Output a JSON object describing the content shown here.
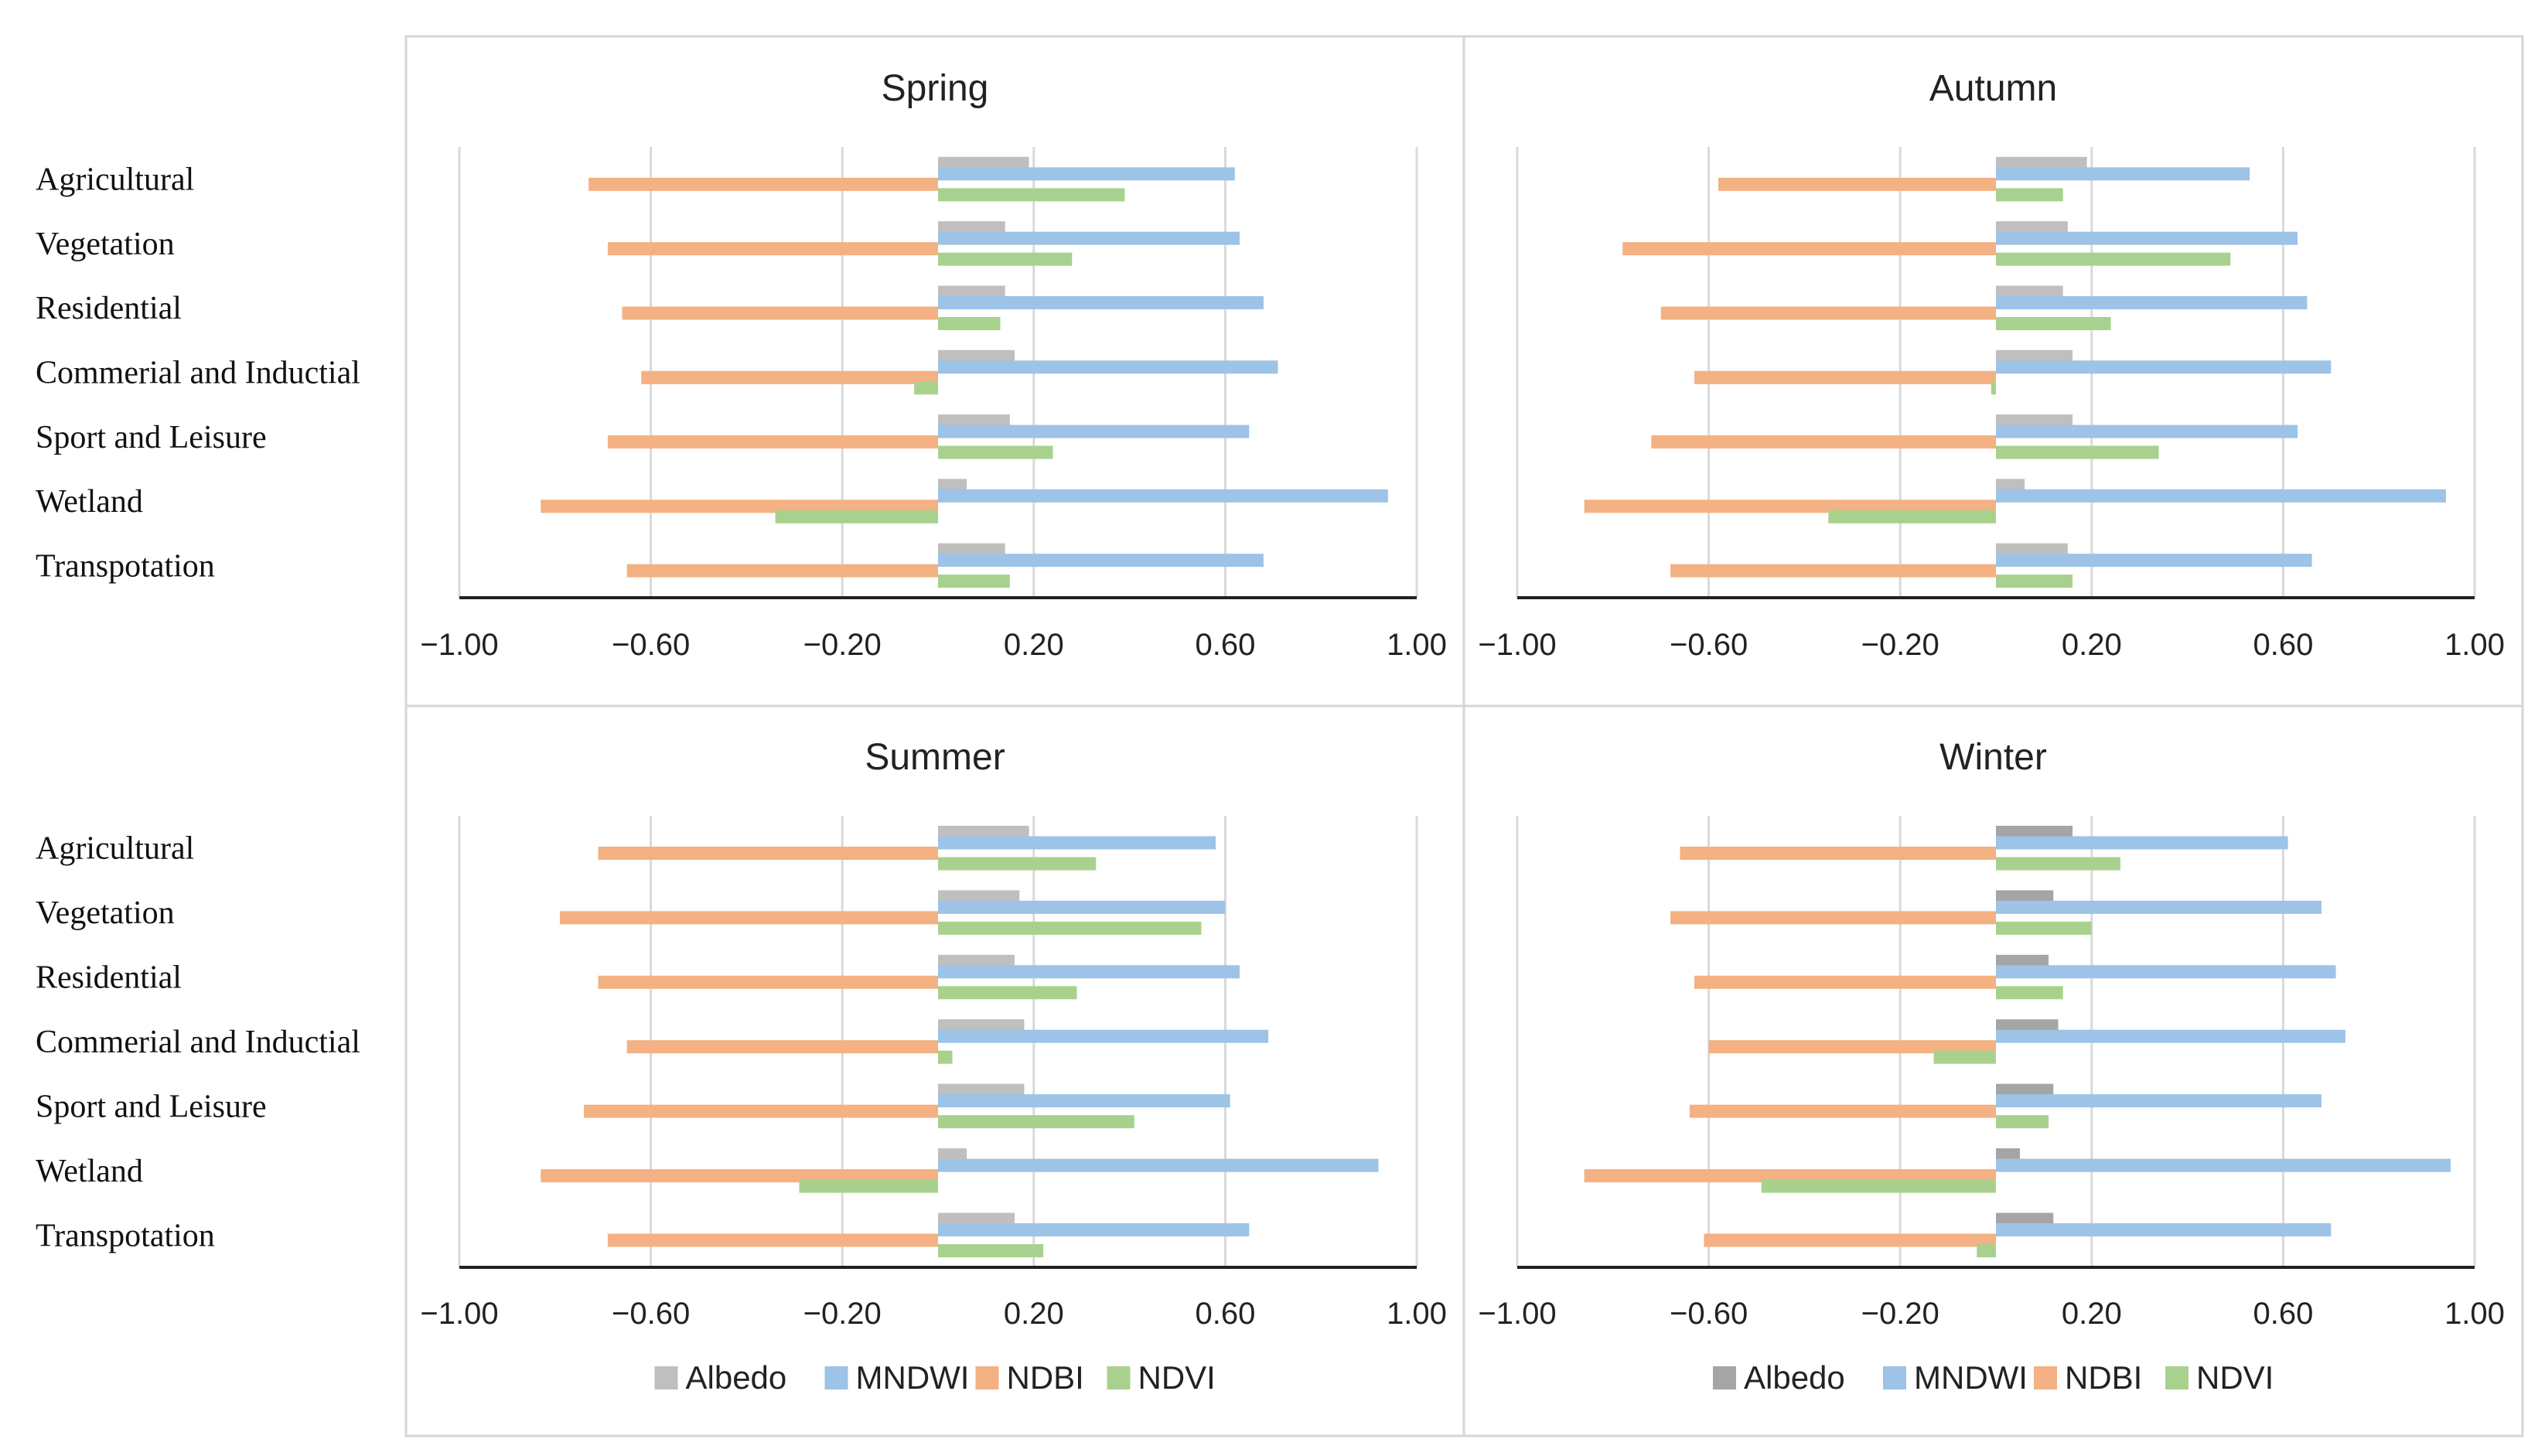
{
  "chart_data": [
    {
      "type": "bar",
      "orientation": "horizontal",
      "title": "Spring",
      "categories": [
        "Agricultural",
        "Vegetation",
        "Residential",
        "Commerial and Inductial",
        "Sport and Leisure",
        "Wetland",
        "Transpotation"
      ],
      "series": [
        {
          "name": "Albedo",
          "color": "#bfbfbf",
          "values": [
            0.19,
            0.14,
            0.14,
            0.16,
            0.15,
            0.06,
            0.14
          ]
        },
        {
          "name": "MNDWI",
          "color": "#9dc3e6",
          "values": [
            0.62,
            0.63,
            0.68,
            0.71,
            0.65,
            0.94,
            0.68
          ]
        },
        {
          "name": "NDBI",
          "color": "#f4b183",
          "values": [
            -0.73,
            -0.69,
            -0.66,
            -0.62,
            -0.69,
            -0.83,
            -0.65
          ]
        },
        {
          "name": "NDVI",
          "color": "#a9d18e",
          "values": [
            0.39,
            0.28,
            0.13,
            -0.05,
            0.24,
            -0.34,
            0.15
          ]
        }
      ],
      "xlim": [
        -1.0,
        1.0
      ],
      "xticks": [
        "−1.00",
        "−0.60",
        "−0.20",
        "0.20",
        "0.60",
        "1.00"
      ],
      "xtick_values": [
        -1.0,
        -0.6,
        -0.2,
        0.2,
        0.6,
        1.0
      ],
      "grid": "vertical"
    },
    {
      "type": "bar",
      "orientation": "horizontal",
      "title": "Autumn",
      "categories": [
        "Agricultural",
        "Vegetation",
        "Residential",
        "Commerial and Inductial",
        "Sport and Leisure",
        "Wetland",
        "Transpotation"
      ],
      "series": [
        {
          "name": "Albedo",
          "color": "#bfbfbf",
          "values": [
            0.19,
            0.15,
            0.14,
            0.16,
            0.16,
            0.06,
            0.15
          ]
        },
        {
          "name": "MNDWI",
          "color": "#9dc3e6",
          "values": [
            0.53,
            0.63,
            0.65,
            0.7,
            0.63,
            0.94,
            0.66
          ]
        },
        {
          "name": "NDBI",
          "color": "#f4b183",
          "values": [
            -0.58,
            -0.78,
            -0.7,
            -0.63,
            -0.72,
            -0.86,
            -0.68
          ]
        },
        {
          "name": "NDVI",
          "color": "#a9d18e",
          "values": [
            0.14,
            0.49,
            0.24,
            -0.01,
            0.34,
            -0.35,
            0.16
          ]
        }
      ],
      "xlim": [
        -1.0,
        1.0
      ],
      "xticks": [
        "−1.00",
        "−0.60",
        "−0.20",
        "0.20",
        "0.60",
        "1.00"
      ],
      "xtick_values": [
        -1.0,
        -0.6,
        -0.2,
        0.2,
        0.6,
        1.0
      ],
      "grid": "vertical"
    },
    {
      "type": "bar",
      "orientation": "horizontal",
      "title": "Summer",
      "categories": [
        "Agricultural",
        "Vegetation",
        "Residential",
        "Commerial and Inductial",
        "Sport and Leisure",
        "Wetland",
        "Transpotation"
      ],
      "series": [
        {
          "name": "Albedo",
          "color": "#bfbfbf",
          "values": [
            0.19,
            0.17,
            0.16,
            0.18,
            0.18,
            0.06,
            0.16
          ]
        },
        {
          "name": "MNDWI",
          "color": "#9dc3e6",
          "values": [
            0.58,
            0.6,
            0.63,
            0.69,
            0.61,
            0.92,
            0.65
          ]
        },
        {
          "name": "NDBI",
          "color": "#f4b183",
          "values": [
            -0.71,
            -0.79,
            -0.71,
            -0.65,
            -0.74,
            -0.83,
            -0.69
          ]
        },
        {
          "name": "NDVI",
          "color": "#a9d18e",
          "values": [
            0.33,
            0.55,
            0.29,
            0.03,
            0.41,
            -0.29,
            0.22
          ]
        }
      ],
      "xlim": [
        -1.0,
        1.0
      ],
      "xticks": [
        "−1.00",
        "−0.60",
        "−0.20",
        "0.20",
        "0.60",
        "1.00"
      ],
      "xtick_values": [
        -1.0,
        -0.6,
        -0.2,
        0.2,
        0.6,
        1.0
      ],
      "grid": "vertical",
      "legend": "bottom"
    },
    {
      "type": "bar",
      "orientation": "horizontal",
      "title": "Winter",
      "categories": [
        "Agricultural",
        "Vegetation",
        "Residential",
        "Commerial and Inductial",
        "Sport and Leisure",
        "Wetland",
        "Transpotation"
      ],
      "series": [
        {
          "name": "Albedo",
          "color": "#a5a5a5",
          "values": [
            0.16,
            0.12,
            0.11,
            0.13,
            0.12,
            0.05,
            0.12
          ]
        },
        {
          "name": "MNDWI",
          "color": "#9dc3e6",
          "values": [
            0.61,
            0.68,
            0.71,
            0.73,
            0.68,
            0.95,
            0.7
          ]
        },
        {
          "name": "NDBI",
          "color": "#f4b183",
          "values": [
            -0.66,
            -0.68,
            -0.63,
            -0.6,
            -0.64,
            -0.86,
            -0.61
          ]
        },
        {
          "name": "NDVI",
          "color": "#a9d18e",
          "values": [
            0.26,
            0.2,
            0.14,
            -0.13,
            0.11,
            -0.49,
            -0.04
          ]
        }
      ],
      "xlim": [
        -1.0,
        1.0
      ],
      "xticks": [
        "−1.00",
        "−0.60",
        "−0.20",
        "0.20",
        "0.60",
        "1.00"
      ],
      "xtick_values": [
        -1.0,
        -0.6,
        -0.2,
        0.2,
        0.6,
        1.0
      ],
      "grid": "vertical",
      "legend": "bottom"
    }
  ]
}
